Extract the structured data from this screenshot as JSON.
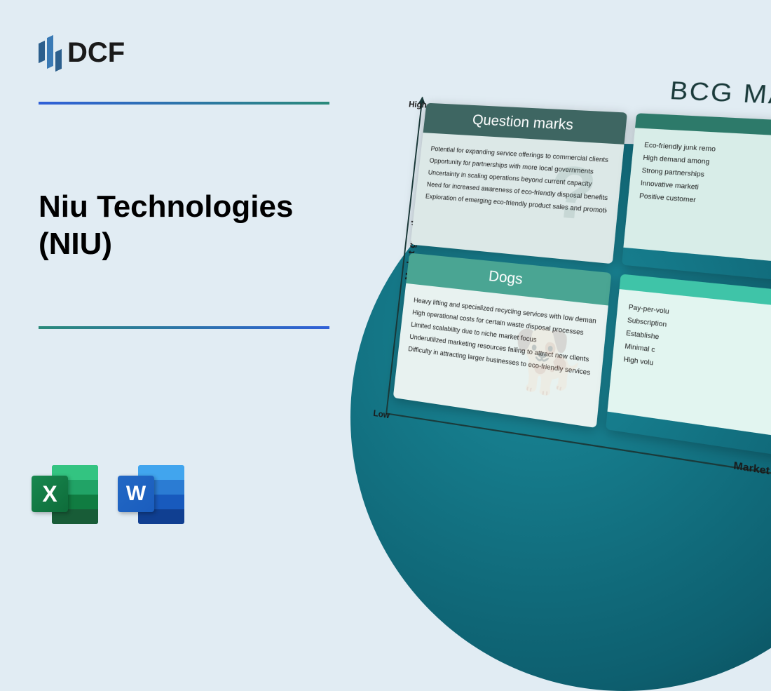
{
  "logo": {
    "text": "DCF"
  },
  "title": {
    "line1": "Niu Technologies",
    "line2": "(NIU)"
  },
  "icons": {
    "excel_letter": "X",
    "word_letter": "W"
  },
  "matrix": {
    "title": "BCG MATRIX",
    "y_axis": "Market growth",
    "x_axis": "Market share",
    "y_high": "High",
    "y_low": "Low",
    "colors": {
      "background_page": "#e1ecf3",
      "circle_gradient_inner": "#1a8a9a",
      "circle_gradient_outer": "#0a4550",
      "qm_header": "#3e6662",
      "qm_body": "#dce8e7",
      "stars_header": "#2d7a6a",
      "stars_body": "#d8ede8",
      "dogs_header": "#4aa593",
      "dogs_body": "#e8f2f0",
      "cows_header": "#3fc4a8",
      "cows_body": "#e2f5f0"
    },
    "quadrants": {
      "qm": {
        "label": "Question marks",
        "items": [
          "Potential for expanding service offerings to commercial clients",
          "Opportunity for partnerships with more local governments",
          "Uncertainty in scaling operations beyond current capacity",
          "Need for increased awareness of eco-friendly disposal benefits",
          "Exploration of emerging eco-friendly product sales and promotions"
        ]
      },
      "stars": {
        "label": "",
        "items": [
          "Eco-friendly junk remo",
          "High demand among",
          "Strong partnerships",
          "Innovative marketi",
          "Positive customer"
        ]
      },
      "dogs": {
        "label": "Dogs",
        "items": [
          "Heavy lifting and specialized recycling services with low demand",
          "High operational costs for certain waste disposal processes",
          "Limited scalability due to niche market focus",
          "Underutilized marketing resources failing to attract new clients",
          "Difficulty in attracting larger businesses to eco-friendly services"
        ]
      },
      "cows": {
        "label": "",
        "items": [
          "Pay-per-volu",
          "Subscription",
          "Establishe",
          "Minimal c",
          "High volu"
        ]
      }
    }
  }
}
